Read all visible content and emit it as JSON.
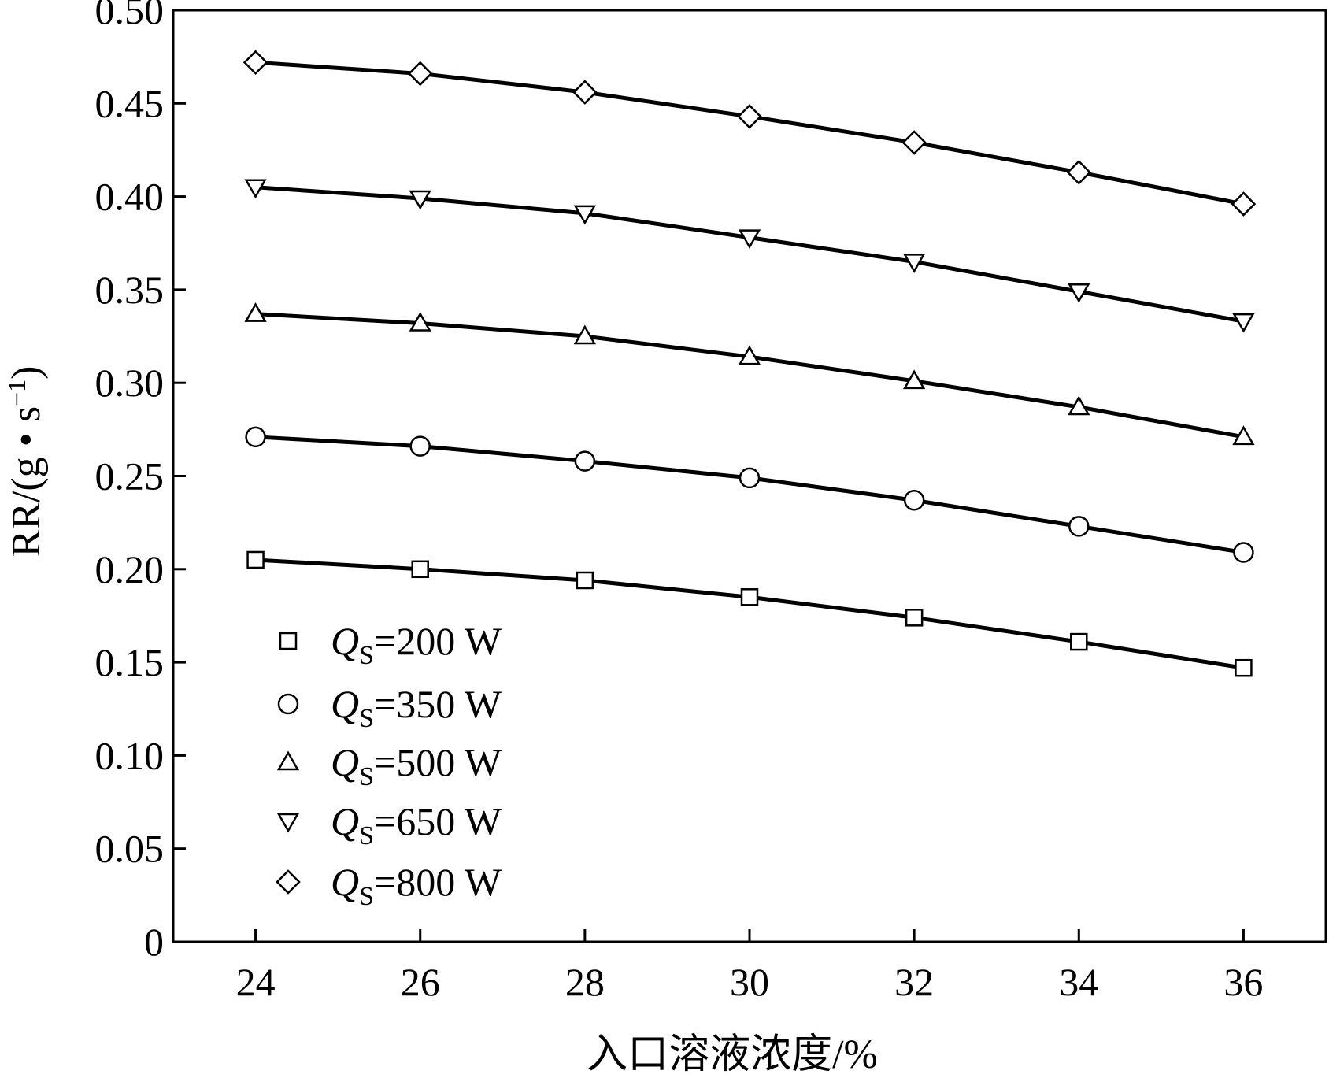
{
  "chart_data": {
    "type": "line",
    "title": "",
    "xlabel": "入口溶液浓度/%",
    "ylabel_parts": {
      "prefix": "RR/(g • s",
      "exponent": "−1",
      "suffix": ")"
    },
    "xlim": [
      23,
      37
    ],
    "ylim": [
      0,
      0.5
    ],
    "x_ticks": [
      "24",
      "26",
      "28",
      "30",
      "32",
      "34",
      "36"
    ],
    "y_ticks": [
      "0",
      "0.05",
      "0.10",
      "0.15",
      "0.20",
      "0.25",
      "0.30",
      "0.35",
      "0.40",
      "0.45",
      "0.50"
    ],
    "grid": false,
    "legend_position": "bottom-left",
    "x": [
      24,
      26,
      28,
      30,
      32,
      34,
      36
    ],
    "series": [
      {
        "legend_q": "Q",
        "legend_sub": "S",
        "legend_rest": "=200 W",
        "marker": "square",
        "values": [
          0.205,
          0.2,
          0.194,
          0.185,
          0.174,
          0.161,
          0.147
        ]
      },
      {
        "legend_q": "Q",
        "legend_sub": "S",
        "legend_rest": "=350 W",
        "marker": "circle",
        "values": [
          0.271,
          0.266,
          0.258,
          0.249,
          0.237,
          0.223,
          0.209
        ]
      },
      {
        "legend_q": "Q",
        "legend_sub": "S",
        "legend_rest": "=500 W",
        "marker": "triangle-up",
        "values": [
          0.337,
          0.332,
          0.325,
          0.314,
          0.301,
          0.287,
          0.271
        ]
      },
      {
        "legend_q": "Q",
        "legend_sub": "S",
        "legend_rest": "=650 W",
        "marker": "triangle-down",
        "values": [
          0.405,
          0.399,
          0.391,
          0.378,
          0.365,
          0.349,
          0.333
        ]
      },
      {
        "legend_q": "Q",
        "legend_sub": "S",
        "legend_rest": "=800 W",
        "marker": "diamond",
        "values": [
          0.472,
          0.466,
          0.456,
          0.443,
          0.429,
          0.413,
          0.396
        ]
      }
    ]
  }
}
